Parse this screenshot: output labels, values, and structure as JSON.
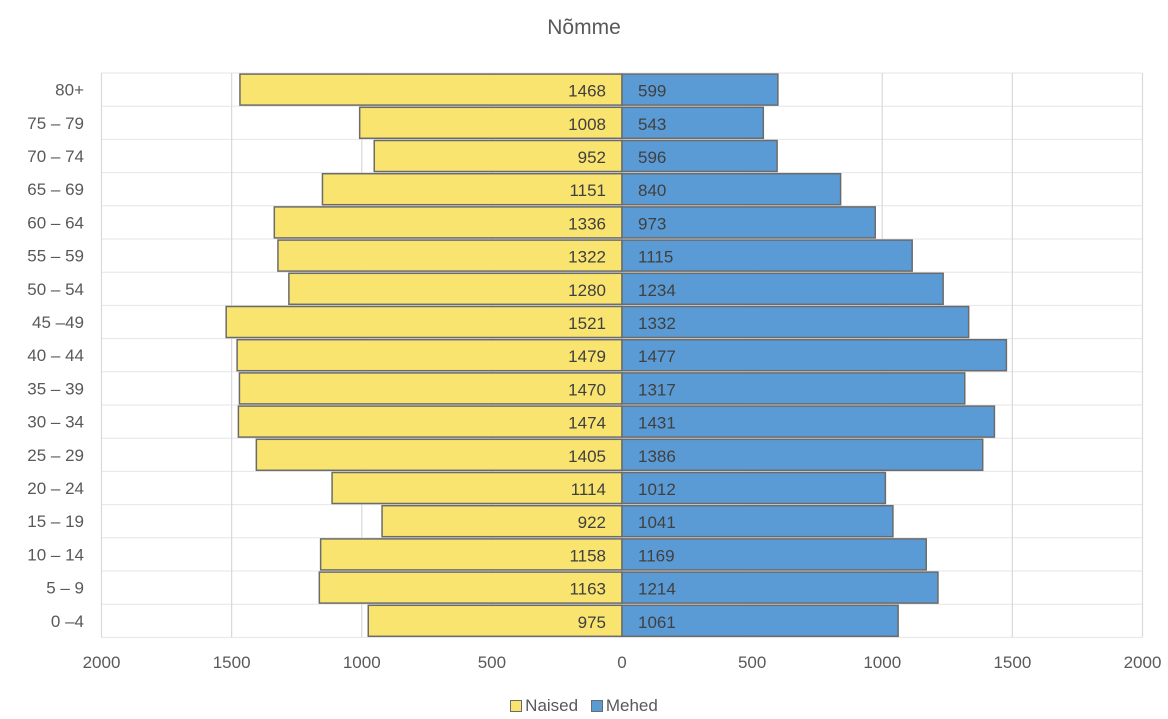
{
  "chart_data": {
    "type": "bar",
    "orientation": "horizontal-population-pyramid",
    "title": "Nõmme",
    "categories": [
      "80+",
      "75 – 79",
      "70 – 74",
      "65 – 69",
      "60 – 64",
      "55 – 59",
      "50 – 54",
      "45 –49",
      "40 – 44",
      "35 – 39",
      "30 – 34",
      "25 – 29",
      "20 – 24",
      "15 – 19",
      "10 – 14",
      "5 – 9",
      "0 –4"
    ],
    "series": [
      {
        "name": "Naised",
        "side": "left",
        "color": "#f9e46f",
        "values": [
          1468,
          1008,
          952,
          1151,
          1336,
          1322,
          1280,
          1521,
          1479,
          1470,
          1474,
          1405,
          1114,
          922,
          1158,
          1163,
          975
        ]
      },
      {
        "name": "Mehed",
        "side": "right",
        "color": "#5b9bd5",
        "values": [
          599,
          543,
          596,
          840,
          973,
          1115,
          1234,
          1332,
          1477,
          1317,
          1431,
          1386,
          1012,
          1041,
          1169,
          1214,
          1061
        ]
      }
    ],
    "xlim": [
      -2000,
      2000
    ],
    "x_ticks": [
      -2000,
      -1500,
      -1000,
      -500,
      0,
      500,
      1000,
      1500,
      2000
    ],
    "x_tick_labels": [
      "2000",
      "1500",
      "1000",
      "500",
      "0",
      "500",
      "1000",
      "1500",
      "2000"
    ],
    "grid": true,
    "legend_position": "bottom"
  }
}
